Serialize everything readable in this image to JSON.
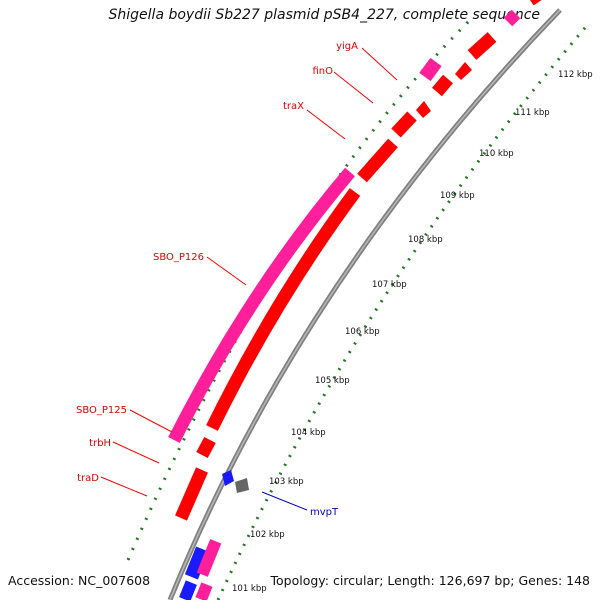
{
  "title": "Shigella boydii Sb227 plasmid pSB4_227, complete sequence",
  "footer": {
    "accession": "Accession: NC_007608",
    "summary": "Topology: circular; Length: 126,697 bp; Genes: 148"
  },
  "scale_labels": [
    "112 kbp",
    "111 kbp",
    "110 kbp",
    "109 kbp",
    "108 kbp",
    "107 kbp",
    "106 kbp",
    "105 kbp",
    "104 kbp",
    "103 kbp",
    "102 kbp",
    "101 kbp"
  ],
  "gene_labels": [
    {
      "text": "yigA",
      "strand": "forward"
    },
    {
      "text": "finO",
      "strand": "forward"
    },
    {
      "text": "traX",
      "strand": "forward"
    },
    {
      "text": "SBO_P126",
      "strand": "forward"
    },
    {
      "text": "SBO_P125",
      "strand": "forward"
    },
    {
      "text": "trbH",
      "strand": "forward"
    },
    {
      "text": "traD",
      "strand": "forward"
    },
    {
      "text": "mvpT",
      "strand": "reverse"
    }
  ],
  "colors": {
    "cds_red": "#ff0000",
    "cds_pink": "#ff1f9a",
    "cds_blue": "#1a1aff",
    "cds_gray": "#666666",
    "backbone": "#808080",
    "gc_dots": "#1f7a1f",
    "label_red": "#dd0000",
    "label_blue": "#0000cc"
  }
}
